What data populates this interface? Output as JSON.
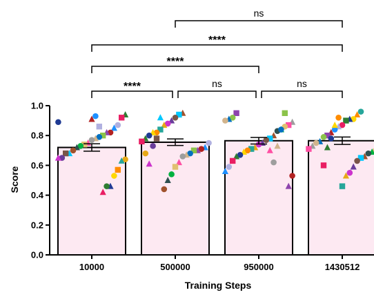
{
  "chart_data": {
    "type": "bar",
    "xlabel": "Training Steps",
    "ylabel": "Score",
    "ylim": [
      0,
      1.0
    ],
    "yticks": [
      0.0,
      0.2,
      0.4,
      0.6,
      0.8,
      1.0
    ],
    "ytick_labels": [
      "0.0",
      "0.2",
      "0.4",
      "0.6",
      "0.8",
      "1.0"
    ],
    "categories": [
      "10000",
      "500000",
      "950000",
      "1430512"
    ],
    "values": [
      0.72,
      0.755,
      0.765,
      0.765
    ],
    "errors": [
      0.025,
      0.022,
      0.022,
      0.025
    ],
    "bar_fill": "#fde9f2",
    "bar_edge": "#000000",
    "marker_colors": [
      "#1f3a93",
      "#b22222",
      "#9e9e9e",
      "#a0522d",
      "#e6a817",
      "#2e7d32",
      "#8e44ad",
      "#ff4fa3",
      "#00c8ff",
      "#26a69a",
      "#e91e63",
      "#8bc34a",
      "#e0c070",
      "#795548",
      "#ff8c00",
      "#b0b0e0",
      "#0070c0",
      "#00b140",
      "#6a3d9a",
      "#ffd700",
      "#1e90ff",
      "#d2b48c",
      "#2f4f4f",
      "#cc33cc"
    ],
    "points": [
      [
        0.89,
        0.94,
        0.92,
        0.87,
        0.85,
        0.82,
        0.82,
        0.8,
        0.79,
        0.78,
        0.77,
        0.75,
        0.74,
        0.73,
        0.72,
        0.7,
        0.68,
        0.68,
        0.65,
        0.65,
        0.64,
        0.63,
        0.57,
        0.53,
        0.46,
        0.46,
        0.42,
        0.86,
        0.93,
        0.91
      ],
      [
        0.95,
        0.94,
        0.92,
        0.9,
        0.88,
        0.87,
        0.84,
        0.82,
        0.82,
        0.8,
        0.78,
        0.76,
        0.75,
        0.72,
        0.71,
        0.7,
        0.7,
        0.68,
        0.67,
        0.66,
        0.62,
        0.59,
        0.54,
        0.5,
        0.44,
        0.92,
        0.78,
        0.73,
        0.61,
        0.68
      ],
      [
        0.95,
        0.92,
        0.91,
        0.9,
        0.89,
        0.87,
        0.86,
        0.84,
        0.83,
        0.8,
        0.78,
        0.77,
        0.75,
        0.74,
        0.72,
        0.71,
        0.7,
        0.69,
        0.67,
        0.66,
        0.63,
        0.59,
        0.56,
        0.53,
        0.46,
        0.95,
        0.84,
        0.73,
        0.62,
        0.7
      ],
      [
        0.96,
        0.94,
        0.91,
        0.91,
        0.9,
        0.87,
        0.86,
        0.84,
        0.82,
        0.8,
        0.79,
        0.76,
        0.75,
        0.73,
        0.71,
        0.7,
        0.69,
        0.68,
        0.66,
        0.65,
        0.63,
        0.59,
        0.55,
        0.53,
        0.46,
        0.92,
        0.87,
        0.78,
        0.72,
        0.6
      ]
    ],
    "significance": [
      {
        "from": 0,
        "to": 1,
        "label": "****"
      },
      {
        "from": 1,
        "to": 2,
        "label": "ns"
      },
      {
        "from": 2,
        "to": 3,
        "label": "ns"
      },
      {
        "from": 0,
        "to": 2,
        "label": "****"
      },
      {
        "from": 0,
        "to": 3,
        "label": "****"
      },
      {
        "from": 1,
        "to": 3,
        "label": "ns"
      }
    ]
  }
}
